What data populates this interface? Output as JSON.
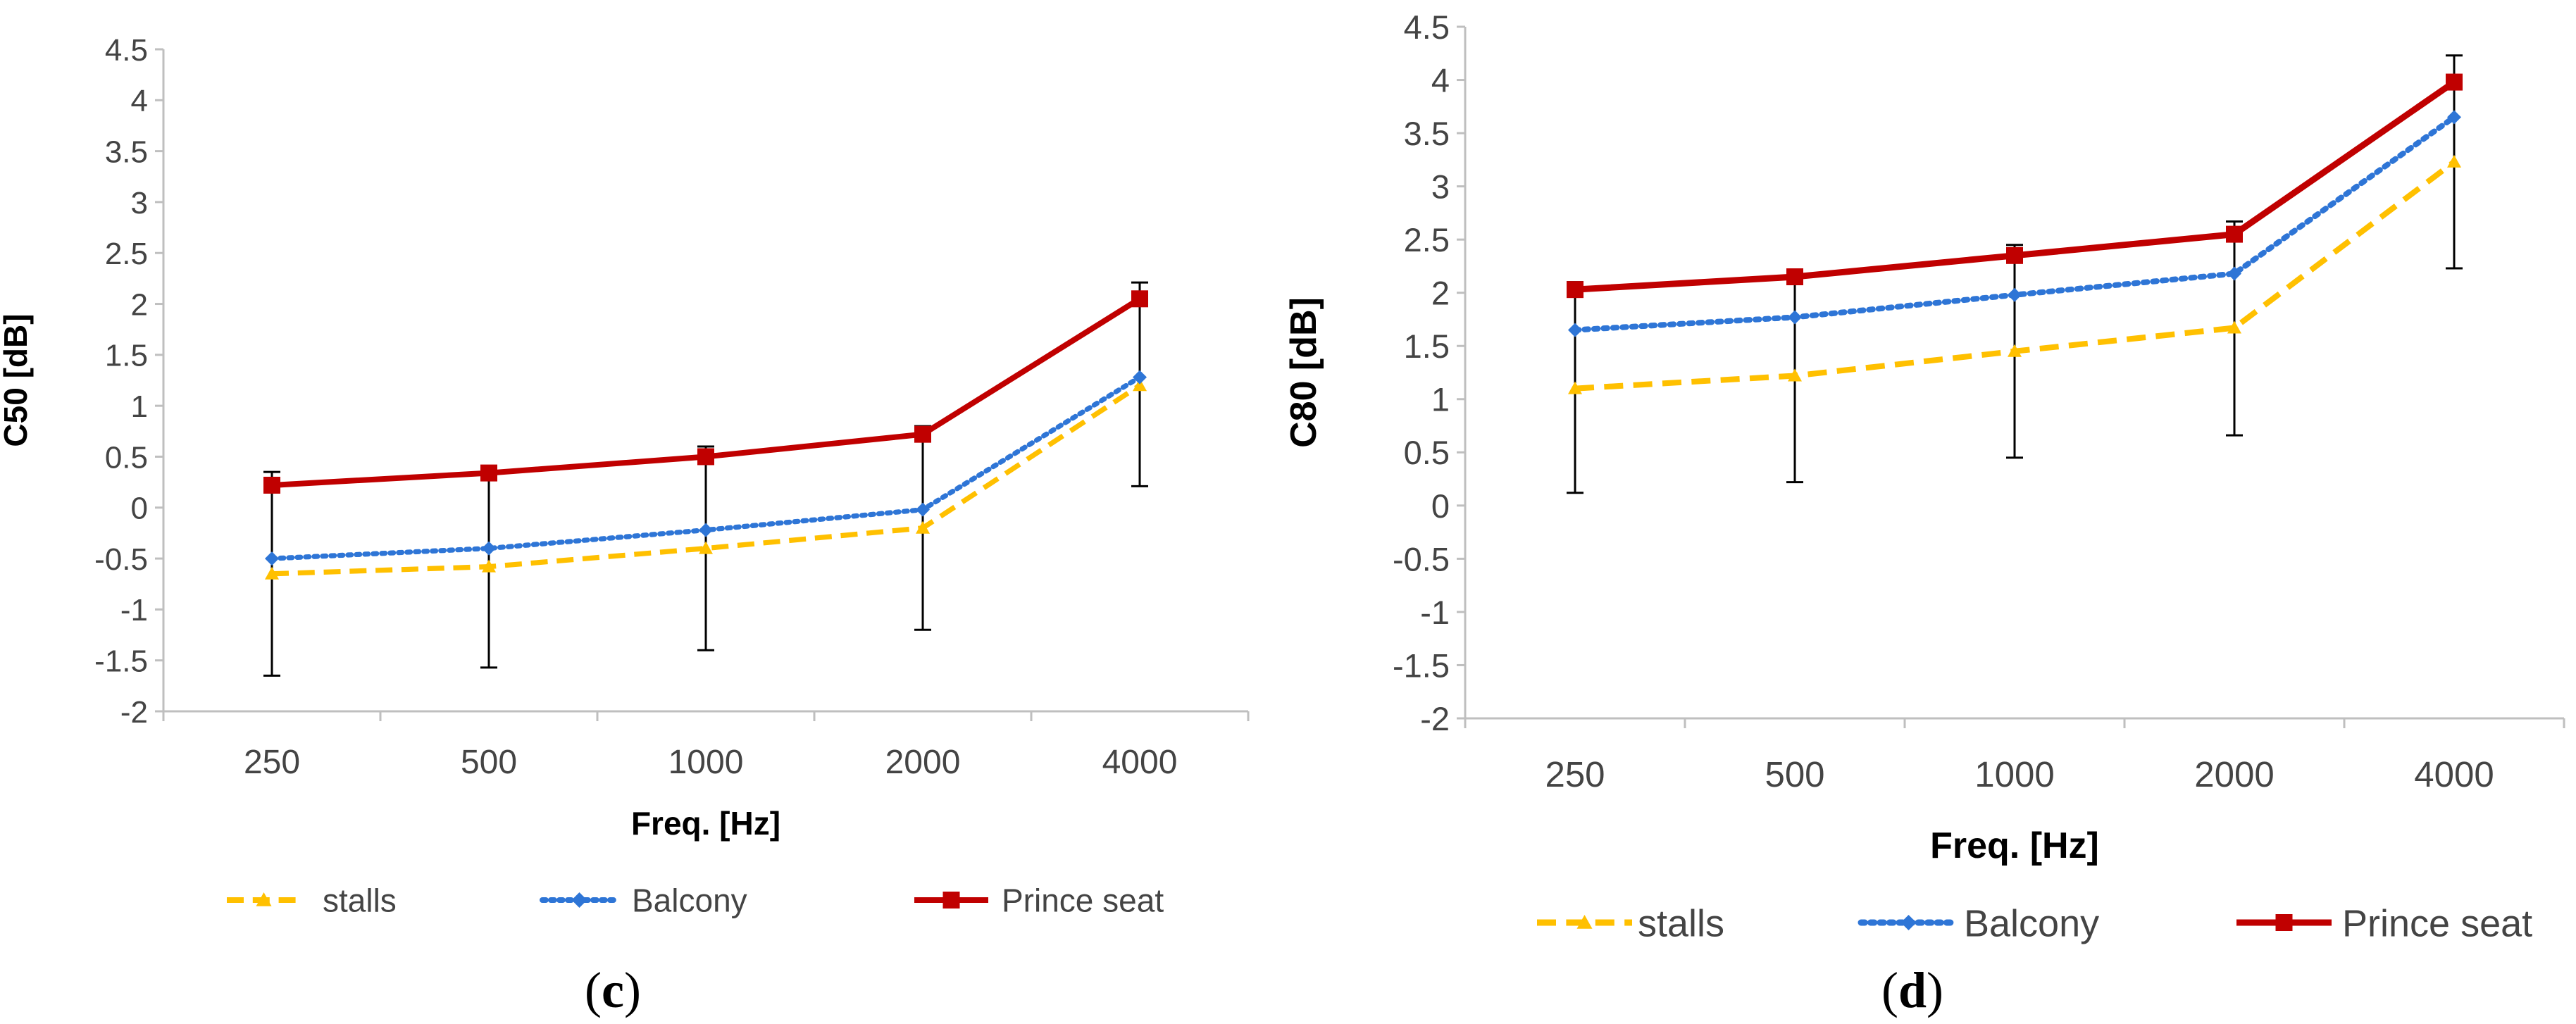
{
  "colors": {
    "stalls": "#FFC000",
    "balcony": "#2E75D6",
    "prince": "#C00000",
    "axis": "#BFBFBF",
    "error": "#000000"
  },
  "chart_data": [
    {
      "type": "line",
      "panel": "(c)",
      "panel_letter": "c",
      "xlabel": "Freq. [Hz]",
      "ylabel": "C50 [dB]",
      "categories": [
        "250",
        "500",
        "1000",
        "2000",
        "4000"
      ],
      "ylim": [
        -2,
        4.5
      ],
      "yticks": [
        "-2",
        "-1.5",
        "-1",
        "-0.5",
        "0",
        "0.5",
        "1",
        "1.5",
        "2",
        "2.5",
        "3",
        "3.5",
        "4",
        "4.5"
      ],
      "grid": false,
      "legend_position": "bottom",
      "series": [
        {
          "name": "stalls",
          "key": "stalls",
          "style": "dashed",
          "marker": "triangle",
          "values": [
            -0.65,
            -0.58,
            -0.4,
            -0.2,
            1.2
          ],
          "error_low": [
            -1.65,
            -1.57,
            -1.4,
            -1.2,
            0.21
          ],
          "error_high": [
            0.35,
            0.41,
            0.6,
            0.8,
            2.21
          ]
        },
        {
          "name": "Balcony",
          "key": "balcony",
          "style": "dotted",
          "marker": "diamond",
          "values": [
            -0.5,
            -0.4,
            -0.22,
            -0.02,
            1.28
          ]
        },
        {
          "name": "Prince seat",
          "key": "prince",
          "style": "solid",
          "marker": "square",
          "values": [
            0.22,
            0.34,
            0.5,
            0.72,
            2.05
          ]
        }
      ]
    },
    {
      "type": "line",
      "panel": "(d)",
      "panel_letter": "d",
      "xlabel": "Freq. [Hz]",
      "ylabel": "C80 [dB]",
      "categories": [
        "250",
        "500",
        "1000",
        "2000",
        "4000"
      ],
      "ylim": [
        -2,
        4.5
      ],
      "yticks": [
        "-2",
        "-1.5",
        "-1",
        "-0.5",
        "0",
        "0.5",
        "1",
        "1.5",
        "2",
        "2.5",
        "3",
        "3.5",
        "4",
        "4.5"
      ],
      "grid": false,
      "legend_position": "bottom",
      "series": [
        {
          "name": "stalls",
          "key": "stalls",
          "style": "dashed",
          "marker": "triangle",
          "values": [
            1.1,
            1.22,
            1.45,
            1.67,
            3.23
          ],
          "error_low": [
            0.12,
            0.22,
            0.45,
            0.66,
            2.23
          ],
          "error_high": [
            2.1,
            2.2,
            2.45,
            2.67,
            4.23
          ]
        },
        {
          "name": "Balcony",
          "key": "balcony",
          "style": "dotted",
          "marker": "diamond",
          "values": [
            1.65,
            1.77,
            1.98,
            2.18,
            3.65
          ]
        },
        {
          "name": "Prince seat",
          "key": "prince",
          "style": "solid",
          "marker": "square",
          "values": [
            2.03,
            2.15,
            2.35,
            2.55,
            3.98
          ]
        }
      ]
    }
  ]
}
